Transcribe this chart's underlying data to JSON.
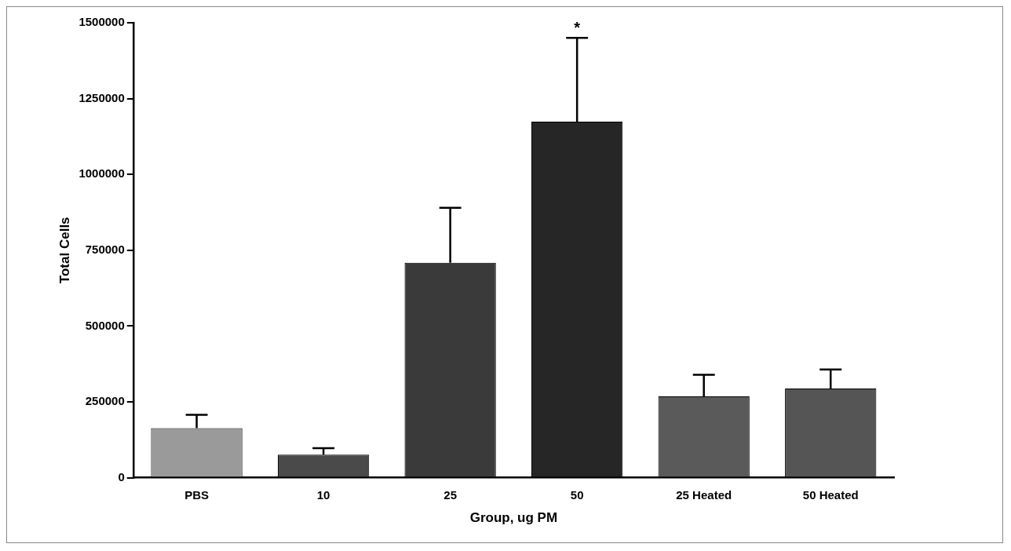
{
  "chart_data": {
    "type": "bar",
    "xlabel": "Group, ug PM",
    "ylabel": "Total Cells",
    "categories": [
      "PBS",
      "10",
      "25",
      "50",
      "25 Heated",
      "50 Heated"
    ],
    "values": [
      163000,
      76000,
      709000,
      1174000,
      268000,
      294000
    ],
    "colors": [
      "#9a9a9a",
      "#4a4a4a",
      "#3a3a3a",
      "#262626",
      "#5a5a5a",
      "#555555"
    ],
    "errors": [
      [
        163000,
        207000
      ],
      [
        76000,
        97000
      ],
      [
        709000,
        890000
      ],
      [
        1174000,
        1450000
      ],
      [
        268000,
        339000
      ],
      [
        294000,
        357000
      ]
    ],
    "annotations": [
      "*"
    ],
    "ylim": [
      0,
      1500000
    ],
    "yticks": [
      0,
      250000,
      500000,
      750000,
      1000000,
      1250000,
      1500000
    ],
    "grid": false,
    "legend": false
  }
}
